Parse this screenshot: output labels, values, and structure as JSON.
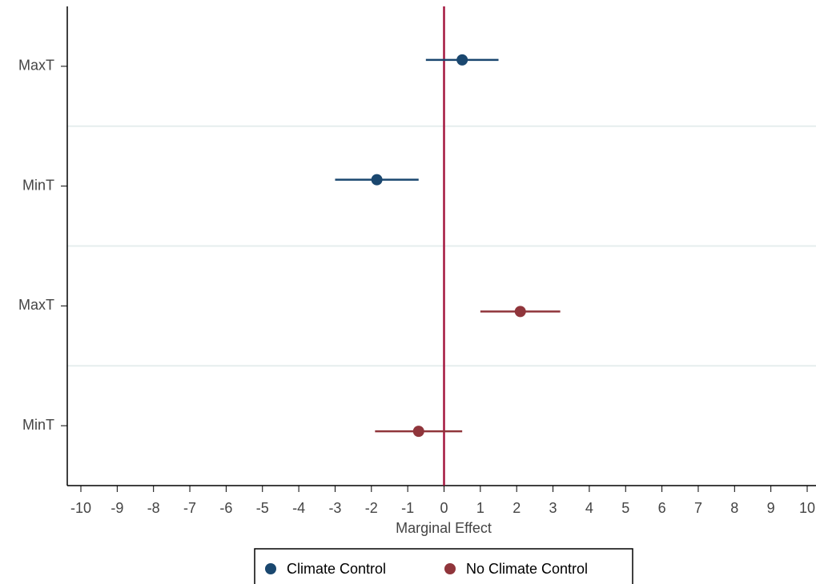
{
  "chart_data": {
    "type": "coefplot",
    "x_label": "Marginal Effect",
    "categories": [
      "MaxT",
      "MinT",
      "MaxT",
      "MinT"
    ],
    "xlim": [
      -10,
      10
    ],
    "xticks": [
      -10,
      -9,
      -8,
      -7,
      -6,
      -5,
      -4,
      -3,
      -2,
      -1,
      0,
      1,
      2,
      3,
      4,
      5,
      6,
      7,
      8,
      9,
      10
    ],
    "reference_line": 0,
    "reference_color": "#a3173e",
    "grid": true,
    "legend": "bottom",
    "series": [
      {
        "name": "Climate Control",
        "color": "#1a476f",
        "values": [
          0.5,
          -1.85,
          null,
          null
        ],
        "lower": [
          -0.5,
          -3.0,
          null,
          null
        ],
        "upper": [
          1.5,
          -0.7,
          null,
          null
        ]
      },
      {
        "name": "No Climate Control",
        "color": "#90353b",
        "values": [
          null,
          null,
          2.1,
          -0.7
        ],
        "lower": [
          null,
          null,
          1.0,
          -1.9
        ],
        "upper": [
          null,
          null,
          3.2,
          0.5
        ]
      }
    ]
  }
}
